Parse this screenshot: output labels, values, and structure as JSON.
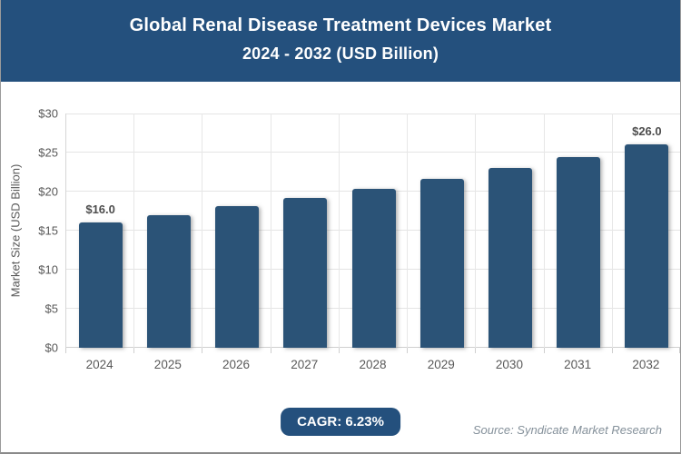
{
  "header": {
    "title_line1": "Global Renal Disease Treatment Devices Market",
    "title_line2": "2024 - 2032 (USD Billion)",
    "bg_color": "#24507D",
    "text_color": "#FFFFFF"
  },
  "chart_data": {
    "type": "bar",
    "title": "Global Renal Disease Treatment Devices Market 2024 - 2032 (USD Billion)",
    "categories": [
      "2024",
      "2025",
      "2026",
      "2027",
      "2028",
      "2029",
      "2030",
      "2031",
      "2032"
    ],
    "values": [
      16.0,
      17.0,
      18.1,
      19.2,
      20.4,
      21.6,
      23.0,
      24.4,
      26.0
    ],
    "point_labels": [
      "$16.0",
      "",
      "",
      "",
      "",
      "",
      "",
      "",
      "$26.0"
    ],
    "xlabel": "",
    "ylabel": "Market Size (USD Billion)",
    "ylim": [
      0,
      30
    ],
    "ytick_step": 5,
    "ytick_labels": [
      "$0",
      "$5",
      "$10",
      "$15",
      "$20",
      "$25",
      "$30"
    ],
    "grid": true,
    "legend": false,
    "bar_color": "#2B5377"
  },
  "footer": {
    "cagr_label": "CAGR: 6.23%",
    "source": "Source: Syndicate Market Research"
  }
}
